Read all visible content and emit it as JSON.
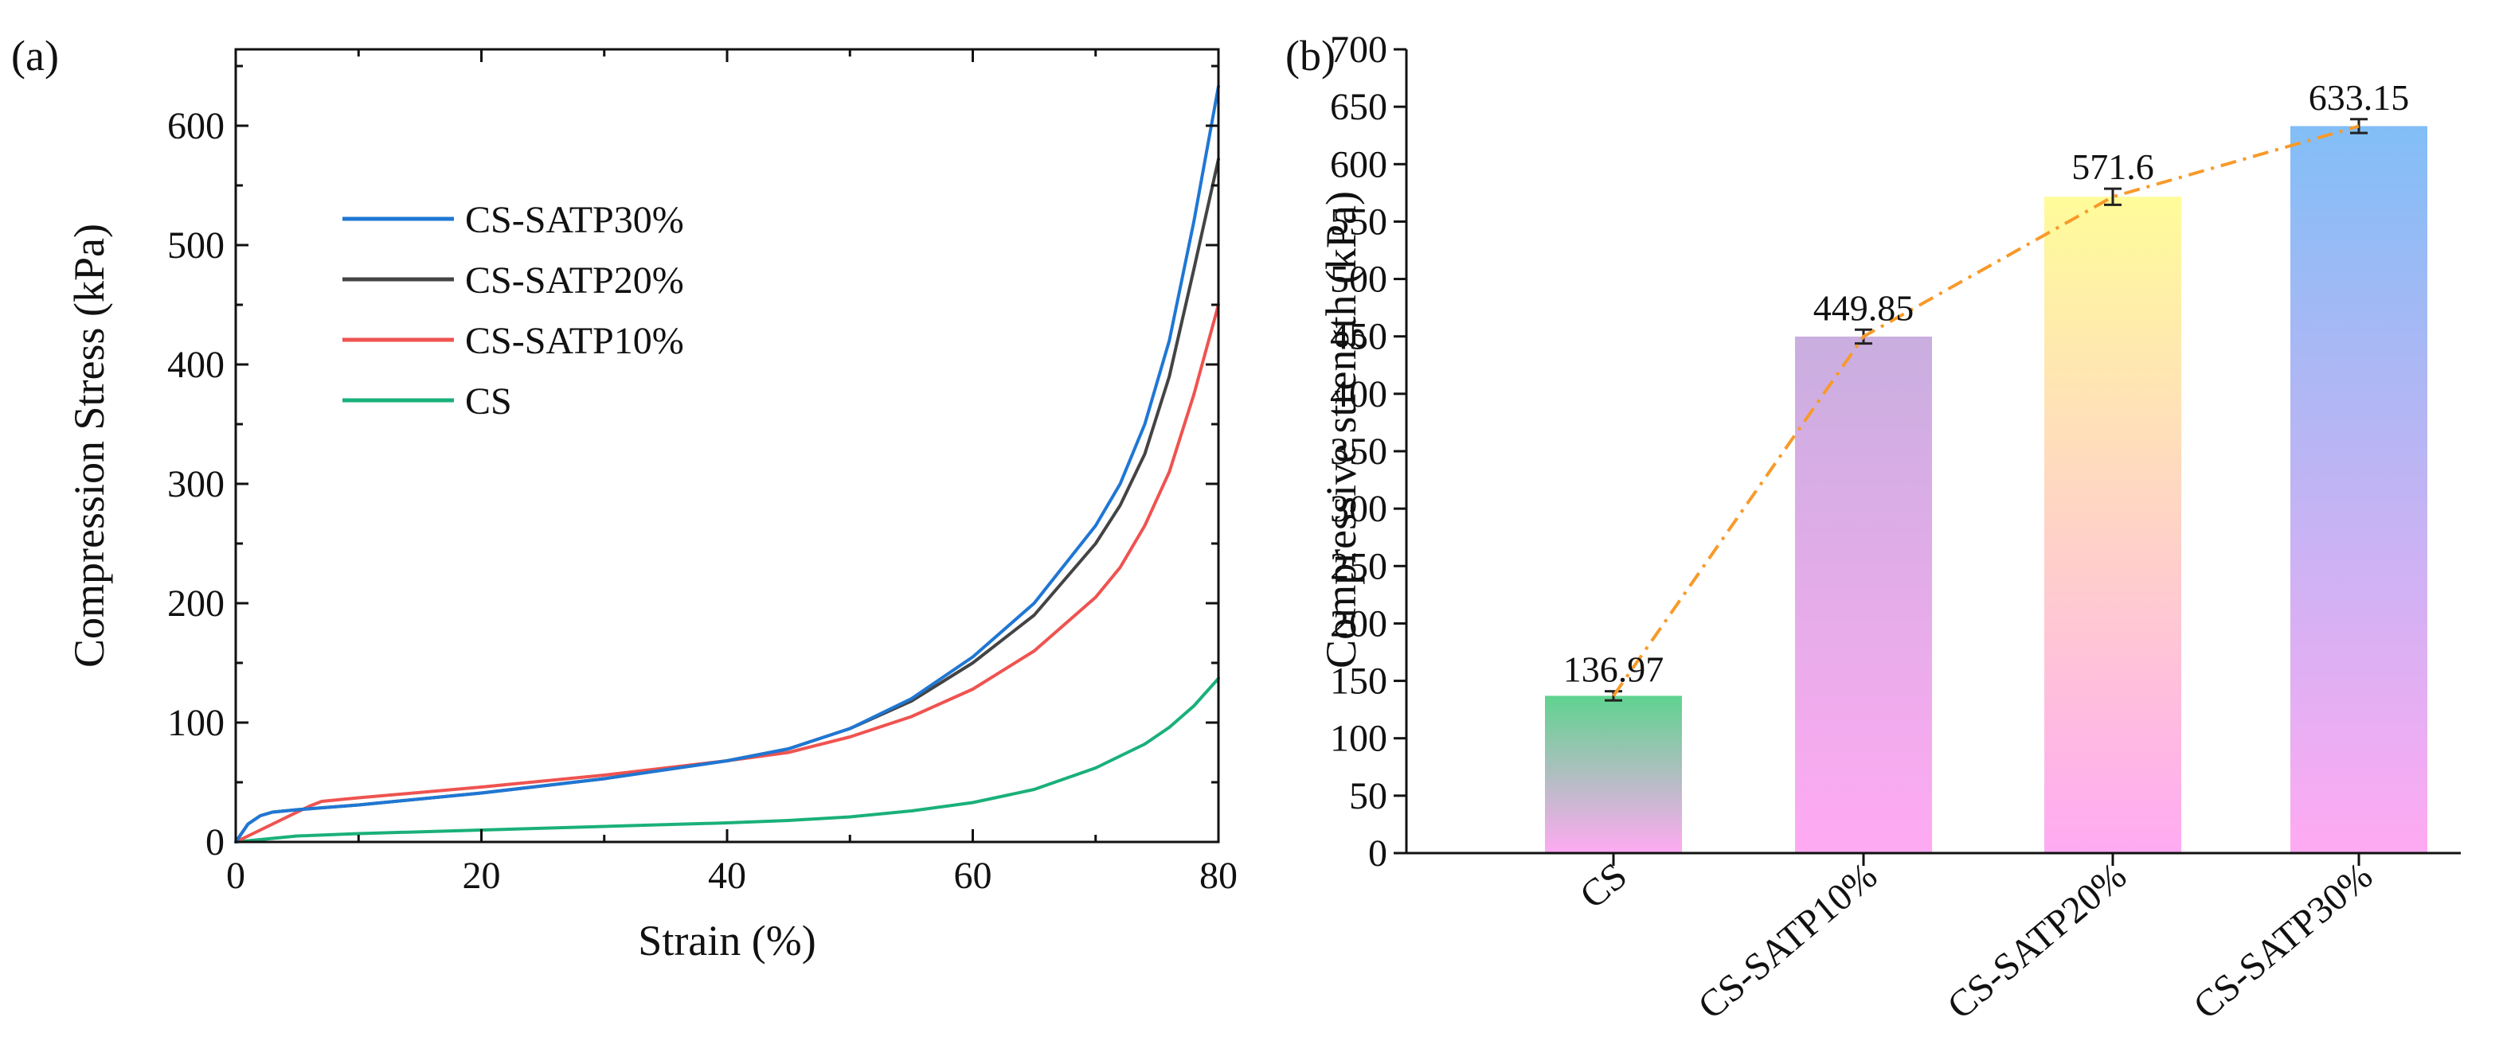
{
  "panels": {
    "a": {
      "letter": "(a)"
    },
    "b": {
      "letter": "(b)"
    }
  },
  "chart_data": [
    {
      "type": "line",
      "title": "",
      "xlabel": "Strain (%)",
      "ylabel": "Compression Stress (kPa)",
      "xlim": [
        0,
        80
      ],
      "ylim": [
        0,
        660
      ],
      "xticks": [
        0,
        20,
        40,
        60,
        80
      ],
      "yticks": [
        0,
        100,
        200,
        300,
        400,
        500,
        600
      ],
      "grid": false,
      "legend_position": "top-left",
      "series": [
        {
          "name": "CS-SATP30%",
          "color": "#1f77d4",
          "x": [
            0,
            1,
            2,
            3,
            5,
            10,
            20,
            30,
            40,
            45,
            50,
            55,
            60,
            65,
            70,
            72,
            74,
            76,
            78,
            80
          ],
          "y": [
            0,
            15,
            22,
            25,
            27,
            31,
            41,
            53,
            68,
            78,
            95,
            120,
            155,
            200,
            265,
            300,
            350,
            420,
            520,
            633
          ]
        },
        {
          "name": "CS-SATP20%",
          "color": "#444444",
          "x": [
            0,
            1,
            2,
            3,
            5,
            10,
            20,
            30,
            40,
            45,
            50,
            55,
            60,
            65,
            70,
            72,
            74,
            76,
            78,
            80
          ],
          "y": [
            0,
            15,
            22,
            25,
            27,
            31,
            41,
            53,
            68,
            78,
            95,
            118,
            150,
            190,
            250,
            282,
            325,
            390,
            480,
            572
          ]
        },
        {
          "name": "CS-SATP10%",
          "color": "#ef5350",
          "x": [
            0,
            2,
            4,
            6,
            7,
            10,
            20,
            30,
            40,
            45,
            50,
            55,
            60,
            65,
            70,
            72,
            74,
            76,
            78,
            80
          ],
          "y": [
            0,
            10,
            20,
            30,
            34,
            37,
            46,
            56,
            68,
            75,
            88,
            105,
            128,
            160,
            205,
            230,
            265,
            310,
            375,
            450
          ]
        },
        {
          "name": "CS",
          "color": "#1ab07a",
          "x": [
            0,
            5,
            10,
            20,
            30,
            40,
            45,
            50,
            55,
            60,
            65,
            70,
            72,
            74,
            76,
            78,
            80
          ],
          "y": [
            0,
            5,
            7,
            10,
            13,
            16,
            18,
            21,
            26,
            33,
            44,
            62,
            72,
            82,
            96,
            114,
            137
          ]
        }
      ]
    },
    {
      "type": "bar",
      "title": "",
      "xlabel": "",
      "ylabel": "Compressive strength (kPa)",
      "ylim": [
        0,
        700
      ],
      "yticks": [
        0,
        50,
        100,
        150,
        200,
        250,
        300,
        350,
        400,
        450,
        500,
        550,
        600,
        650,
        700
      ],
      "categories": [
        "CS",
        "CS-SATP10%",
        "CS-SATP20%",
        "CS-SATP30%"
      ],
      "values": [
        136.97,
        449.85,
        571.6,
        633.15
      ],
      "value_labels": [
        "136.97",
        "449.85",
        "571.6",
        "633.15"
      ],
      "errors": [
        4,
        6,
        7,
        6
      ],
      "bar_top_colors": [
        "#5fd38f",
        "#c9aee0",
        "#fffc9a",
        "#82bef6"
      ],
      "bar_bottom_color": "#ffaaf2",
      "trend_line_color": "#f79a2a",
      "grid": false
    }
  ]
}
